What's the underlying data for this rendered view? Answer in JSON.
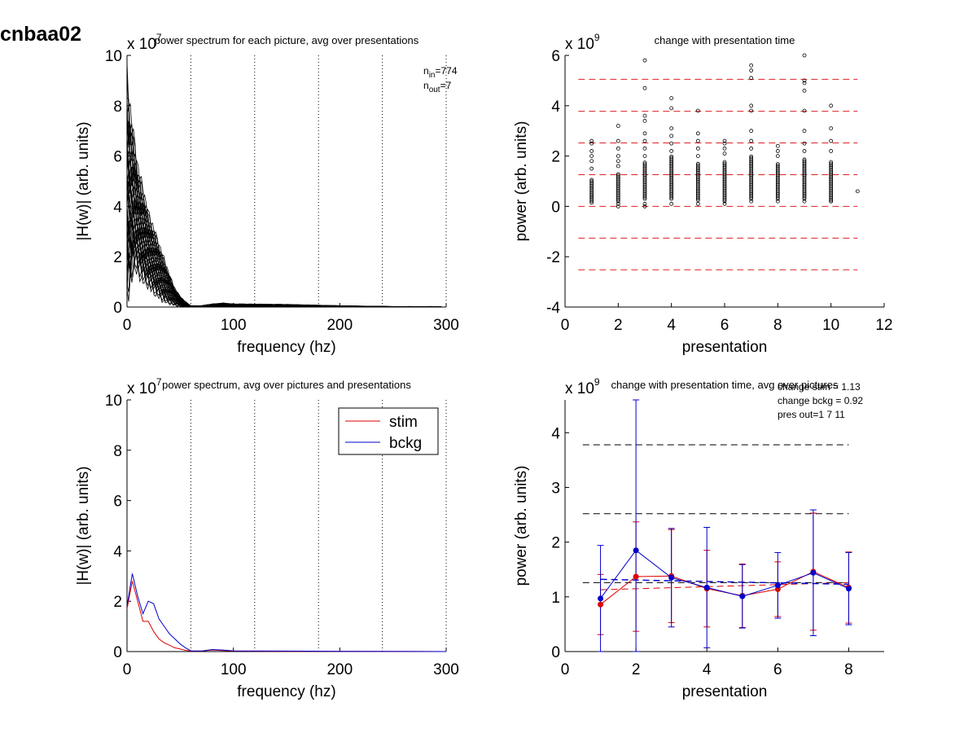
{
  "figure_id": "cnbaa02",
  "colors": {
    "stim": "#dd0000",
    "bckg": "#0000cc",
    "axis": "#000000",
    "ref_red": "#dd2222",
    "ref_black": "#000000"
  },
  "chart_data": [
    {
      "type": "line",
      "title": "power spectrum for each picture, avg over presentations",
      "xlabel": "frequency (hz)",
      "ylabel": "|H(w)| (arb. units)",
      "xlim": [
        0,
        300
      ],
      "ylim": [
        0,
        10
      ],
      "y_multiplier": "x 10^7",
      "y_multiplier_base": "x 10",
      "y_multiplier_exp": "7",
      "xticks": [
        0,
        100,
        200,
        300
      ],
      "yticks": [
        0,
        2,
        4,
        6,
        8,
        10
      ],
      "vlines": [
        60,
        120,
        180,
        240,
        300
      ],
      "annotations": {
        "n_in": "774",
        "n_out": "7",
        "n_in_label": "n",
        "n_in_sub": "in",
        "n_out_label": "n",
        "n_out_sub": "out"
      },
      "series_description": "many overlapping per-picture spectra",
      "envelope": {
        "x": [
          0,
          3,
          6,
          10,
          15,
          20,
          25,
          30,
          35,
          40,
          45,
          50,
          55,
          60,
          70,
          80,
          90,
          100,
          150,
          200,
          250,
          300
        ],
        "upper": [
          8.8,
          7.5,
          6.6,
          5.4,
          4.5,
          3.6,
          3.0,
          2.4,
          1.8,
          1.2,
          0.7,
          0.4,
          0.2,
          0.05,
          0.05,
          0.12,
          0.15,
          0.12,
          0.1,
          0.05,
          0.02,
          0.02
        ],
        "lower": [
          0.6,
          1.2,
          1.8,
          1.6,
          1.2,
          1.0,
          0.7,
          0.5,
          0.3,
          0.2,
          0.1,
          0.05,
          0.02,
          0.0,
          0.0,
          0.02,
          0.02,
          0.02,
          0.01,
          0.01,
          0.0,
          0.0
        ]
      }
    },
    {
      "type": "scatter",
      "title": "change with presentation time",
      "xlabel": "presentation",
      "ylabel": "power (arb. units)",
      "xlim": [
        0,
        12
      ],
      "ylim": [
        -4,
        6
      ],
      "y_multiplier": "x 10^9",
      "y_multiplier_base": "x 10",
      "y_multiplier_exp": "9",
      "xticks": [
        0,
        2,
        4,
        6,
        8,
        10,
        12
      ],
      "yticks": [
        -4,
        -2,
        0,
        2,
        4,
        6
      ],
      "hlines_red": [
        5.05,
        3.78,
        2.52,
        1.26,
        0.0,
        -1.26,
        -2.52
      ],
      "columns": [
        {
          "x": 1,
          "range": [
            0.15,
            1.1
          ],
          "outliers": [
            1.5,
            1.8,
            2.0,
            2.2,
            2.5,
            2.6
          ]
        },
        {
          "x": 2,
          "range": [
            0.2,
            1.3
          ],
          "outliers": [
            0.1,
            0.0,
            1.6,
            1.8,
            2.0,
            2.3,
            2.6,
            3.2
          ]
        },
        {
          "x": 3,
          "range": [
            0.3,
            1.8
          ],
          "outliers": [
            0.0,
            0.1,
            2.0,
            2.3,
            2.6,
            2.9,
            3.4,
            3.6,
            4.7,
            5.8
          ]
        },
        {
          "x": 4,
          "range": [
            0.3,
            2.0
          ],
          "outliers": [
            0.1,
            2.2,
            2.5,
            2.8,
            3.1,
            3.9,
            4.3
          ]
        },
        {
          "x": 5,
          "range": [
            0.25,
            1.7
          ],
          "outliers": [
            0.1,
            2.0,
            2.3,
            2.6,
            2.9,
            3.8
          ]
        },
        {
          "x": 6,
          "range": [
            0.2,
            1.8
          ],
          "outliers": [
            0.1,
            2.1,
            2.3,
            2.5,
            2.6
          ]
        },
        {
          "x": 7,
          "range": [
            0.3,
            2.0
          ],
          "outliers": [
            0.2,
            2.3,
            2.6,
            3.0,
            3.8,
            4.0,
            5.1,
            5.4,
            5.6
          ]
        },
        {
          "x": 8,
          "range": [
            0.3,
            1.7
          ],
          "outliers": [
            0.2,
            2.0,
            2.2,
            2.4
          ]
        },
        {
          "x": 9,
          "range": [
            0.3,
            1.9
          ],
          "outliers": [
            0.2,
            2.2,
            2.5,
            3.0,
            3.8,
            4.6,
            4.9,
            5.0,
            6.0
          ]
        },
        {
          "x": 10,
          "range": [
            0.2,
            1.8
          ],
          "outliers": [
            0.2,
            2.2,
            2.6,
            3.1,
            4.0
          ]
        },
        {
          "x": 11,
          "range": [],
          "outliers": [
            0.6
          ]
        }
      ]
    },
    {
      "type": "line",
      "title": "power spectrum, avg over pictures and presentations",
      "xlabel": "frequency (hz)",
      "ylabel": "|H(w)| (arb. units)",
      "xlim": [
        0,
        300
      ],
      "ylim": [
        0,
        10
      ],
      "y_multiplier": "x 10^7",
      "y_multiplier_base": "x 10",
      "y_multiplier_exp": "7",
      "xticks": [
        0,
        100,
        200,
        300
      ],
      "yticks": [
        0,
        2,
        4,
        6,
        8,
        10
      ],
      "vlines": [
        60,
        120,
        180,
        240,
        300
      ],
      "legend_position": "top-right",
      "series": [
        {
          "name": "stim",
          "x": [
            0,
            5,
            10,
            15,
            20,
            25,
            30,
            35,
            40,
            45,
            50,
            55,
            60,
            70,
            80,
            90,
            100,
            150,
            200,
            300
          ],
          "values": [
            1.7,
            2.8,
            2.0,
            1.2,
            1.2,
            0.8,
            0.5,
            0.35,
            0.25,
            0.15,
            0.1,
            0.05,
            0.02,
            0.02,
            0.06,
            0.04,
            0.02,
            0.01,
            0.01,
            0.0
          ]
        },
        {
          "name": "bckg",
          "x": [
            0,
            5,
            10,
            15,
            20,
            25,
            30,
            35,
            40,
            45,
            50,
            55,
            60,
            70,
            80,
            90,
            100,
            150,
            200,
            300
          ],
          "values": [
            1.8,
            3.1,
            2.2,
            1.5,
            2.0,
            1.9,
            1.3,
            1.0,
            0.7,
            0.5,
            0.3,
            0.15,
            0.03,
            0.02,
            0.08,
            0.06,
            0.03,
            0.02,
            0.01,
            0.0
          ]
        }
      ]
    },
    {
      "type": "line",
      "title": "change with presentation time, avg over pictures",
      "xlabel": "presentation",
      "ylabel": "power (arb. units)",
      "xlim": [
        0,
        9
      ],
      "ylim": [
        0,
        4.6
      ],
      "y_multiplier": "x 10^9",
      "y_multiplier_base": "x 10",
      "y_multiplier_exp": "9",
      "xticks": [
        0,
        2,
        4,
        6,
        8
      ],
      "yticks": [
        0,
        1,
        2,
        3,
        4
      ],
      "annotations": [
        "change stim = 1.13",
        "change bckg = 0.92",
        "pres out=1 7 11"
      ],
      "hlines_black": [
        3.78,
        2.52,
        1.26
      ],
      "series": [
        {
          "name": "stim",
          "x": [
            1,
            2,
            3,
            4,
            5,
            6,
            7,
            8
          ],
          "values": [
            0.86,
            1.37,
            1.38,
            1.15,
            1.02,
            1.14,
            1.46,
            1.17
          ],
          "err": [
            0.55,
            1.0,
            0.85,
            0.7,
            0.58,
            0.5,
            1.07,
            0.65
          ]
        },
        {
          "name": "bckg",
          "x": [
            1,
            2,
            3,
            4,
            5,
            6,
            7,
            8
          ],
          "values": [
            0.97,
            1.85,
            1.35,
            1.17,
            1.01,
            1.21,
            1.44,
            1.15
          ],
          "err": [
            0.97,
            2.8,
            0.9,
            1.1,
            0.58,
            0.6,
            1.15,
            0.66
          ]
        }
      ],
      "trend_stim": [
        1.13,
        1.26
      ],
      "trend_bckg": [
        1.32,
        1.23
      ]
    }
  ]
}
